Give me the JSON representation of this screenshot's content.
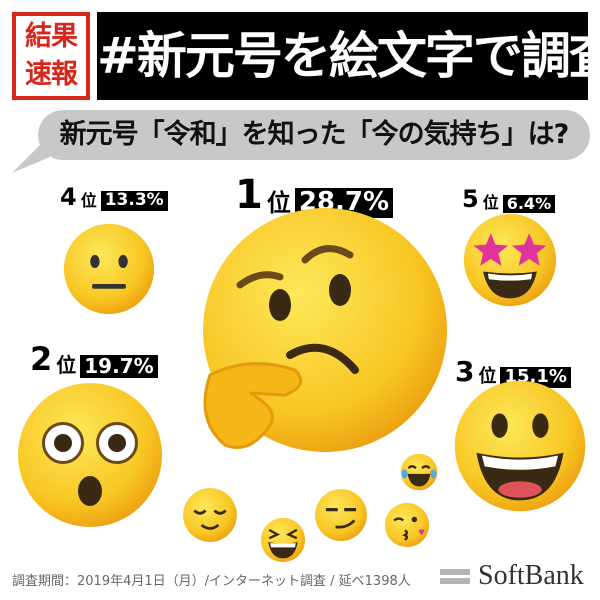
{
  "header": {
    "badge_line1": "結果",
    "badge_line2": "速報",
    "title": "#新元号を絵文字で調査"
  },
  "question": "新元号「令和」を知った「今の気持ち」は?",
  "rank_suffix": "位",
  "rankings": [
    {
      "rank": "1",
      "percent": "28.7%",
      "emoji": "thinking-face"
    },
    {
      "rank": "2",
      "percent": "19.7%",
      "emoji": "flushed-face"
    },
    {
      "rank": "3",
      "percent": "15.1%",
      "emoji": "grinning-face"
    },
    {
      "rank": "4",
      "percent": "13.3%",
      "emoji": "neutral-face"
    },
    {
      "rank": "5",
      "percent": "6.4%",
      "emoji": "star-struck"
    }
  ],
  "other_emojis": [
    "relieved-face",
    "laughing-squinting-face",
    "smirking-face",
    "kissing-heart-face",
    "tears-of-joy-face"
  ],
  "colors": {
    "accent_red": "#d9261c",
    "emoji_yellow": "#f7c220",
    "bubble_gray": "#c8c8c8"
  },
  "footer": {
    "survey_info": "調査期間：2019年4月1日（月）/インターネット調査 / 延べ1398人",
    "brand": "SoftBank"
  }
}
